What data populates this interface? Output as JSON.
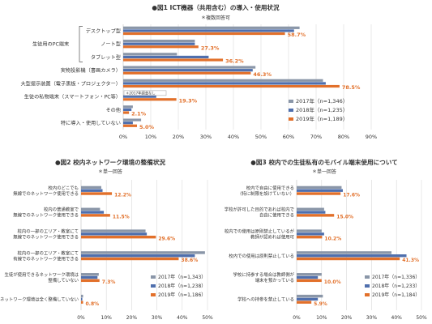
{
  "colors": {
    "2017": "#8a96a8",
    "2018": "#4f6fad",
    "2019": "#e2702a",
    "grid": "#d9d9d9",
    "axis": "#bfbfbf",
    "text": "#333333",
    "label2019": "#e2702a"
  },
  "chart_data": [
    {
      "id": "fig1",
      "type": "bar",
      "orientation": "horizontal",
      "title": "●図1 ICT機器（共用含む）の導入・使用状況",
      "subtitle": "＊複数回答可",
      "group_label": "生徒用のPC端末",
      "categories": [
        "デスクトップ型",
        "ノート型",
        "タブレット型",
        "実物投影機（書画カメラ）",
        "大型提示装置（電子黒板・プロジェクター）",
        "生徒の私物端末（スマートフォン・PC等）",
        "その他",
        "特に導入・使用していない"
      ],
      "annotation": "＊2017年調査なし",
      "series": [
        {
          "name": "2017年（n=1,346）",
          "values": [
            64.0,
            26.0,
            19.5,
            48.0,
            72.5,
            null,
            3.5,
            6.5
          ]
        },
        {
          "name": "2018年（n=1,235）",
          "values": [
            62.0,
            26.0,
            31.0,
            47.0,
            73.5,
            12.0,
            3.0,
            3.5
          ]
        },
        {
          "name": "2019年（n=1,189）",
          "values": [
            58.7,
            27.3,
            36.2,
            46.3,
            78.5,
            19.3,
            2.1,
            5.0
          ]
        }
      ],
      "data_labels": [
        "58.7%",
        "27.3%",
        "36.2%",
        "46.3%",
        "78.5%",
        "19.3%",
        "2.1%",
        "5.0%"
      ],
      "xlim": [
        0,
        90
      ],
      "ticks": [
        "0%",
        "10%",
        "20%",
        "30%",
        "40%",
        "50%",
        "60%",
        "70%",
        "80%",
        "90%"
      ],
      "grid": true,
      "legend": "bottom-right"
    },
    {
      "id": "fig2",
      "type": "bar",
      "orientation": "horizontal",
      "title": "●図2 校内ネットワーク環境の整備状況",
      "subtitle": "＊単一回答",
      "categories": [
        [
          "校内のどこでも",
          "無線でのネットワーク使用できる"
        ],
        [
          "校内の普通教室で",
          "無線でのネットワーク使用できる"
        ],
        [
          "校内の一部のエリア・教室にて",
          "無線でのネットワーク使用できる"
        ],
        [
          "校内の一部のエリア・教室にて",
          "有線でのネットワーク使用できる"
        ],
        [
          "生徒が使用できるネットワーク環境は",
          "整備していない"
        ],
        [
          "ネットワーク環境は全く整備していない"
        ]
      ],
      "series": [
        {
          "name": "2017年（n=1,343）",
          "values": [
            8.0,
            7.5,
            25.5,
            49.0,
            7.0,
            0.8
          ]
        },
        {
          "name": "2018年（n=1,238）",
          "values": [
            8.5,
            9.0,
            26.0,
            45.0,
            6.5,
            0.5
          ]
        },
        {
          "name": "2019年（n=1,186）",
          "values": [
            12.2,
            11.5,
            29.6,
            38.6,
            7.3,
            0.8
          ]
        }
      ],
      "data_labels": [
        "12.2%",
        "11.5%",
        "29.6%",
        "38.6%",
        "7.3%",
        "0.8%"
      ],
      "xlim": [
        0,
        50
      ],
      "ticks": [
        "0%",
        "10%",
        "20%",
        "30%",
        "40%",
        "50%"
      ],
      "grid": true,
      "legend": "bottom-right"
    },
    {
      "id": "fig3",
      "type": "bar",
      "orientation": "horizontal",
      "title": "●図3 校内での生徒私有のモバイル端末使用について",
      "subtitle": "＊単一回答",
      "categories": [
        [
          "校内で自由に使用できる",
          "（特に制限を設けていない）"
        ],
        [
          "学校が許可した目的であれば校内で",
          "自由に使用できる"
        ],
        [
          "校内での使用は原則禁止しているが",
          "教師が認めれば使用可"
        ],
        [
          "校内での使用は原則禁止している"
        ],
        [
          "学校に持参する場合は教師側が",
          "端末を預かっている"
        ],
        [
          "学校への持参を禁止している"
        ]
      ],
      "series": [
        {
          "name": "2017年（n=1,336）",
          "values": [
            18.0,
            11.0,
            10.0,
            38.0,
            10.0,
            10.5
          ]
        },
        {
          "name": "2018年（n=1,233）",
          "values": [
            18.5,
            11.5,
            11.0,
            44.0,
            8.5,
            8.5
          ]
        },
        {
          "name": "2019年（n=1,184）",
          "values": [
            17.6,
            15.0,
            10.2,
            41.3,
            10.0,
            5.9
          ]
        }
      ],
      "data_labels": [
        "17.6%",
        "15.0%",
        "10.2%",
        "41.3%",
        "10.0%",
        "5.9%"
      ],
      "xlim": [
        0,
        50
      ],
      "ticks": [
        "0%",
        "10%",
        "20%",
        "30%",
        "40%",
        "50%"
      ],
      "grid": true,
      "legend": "bottom-right"
    }
  ]
}
